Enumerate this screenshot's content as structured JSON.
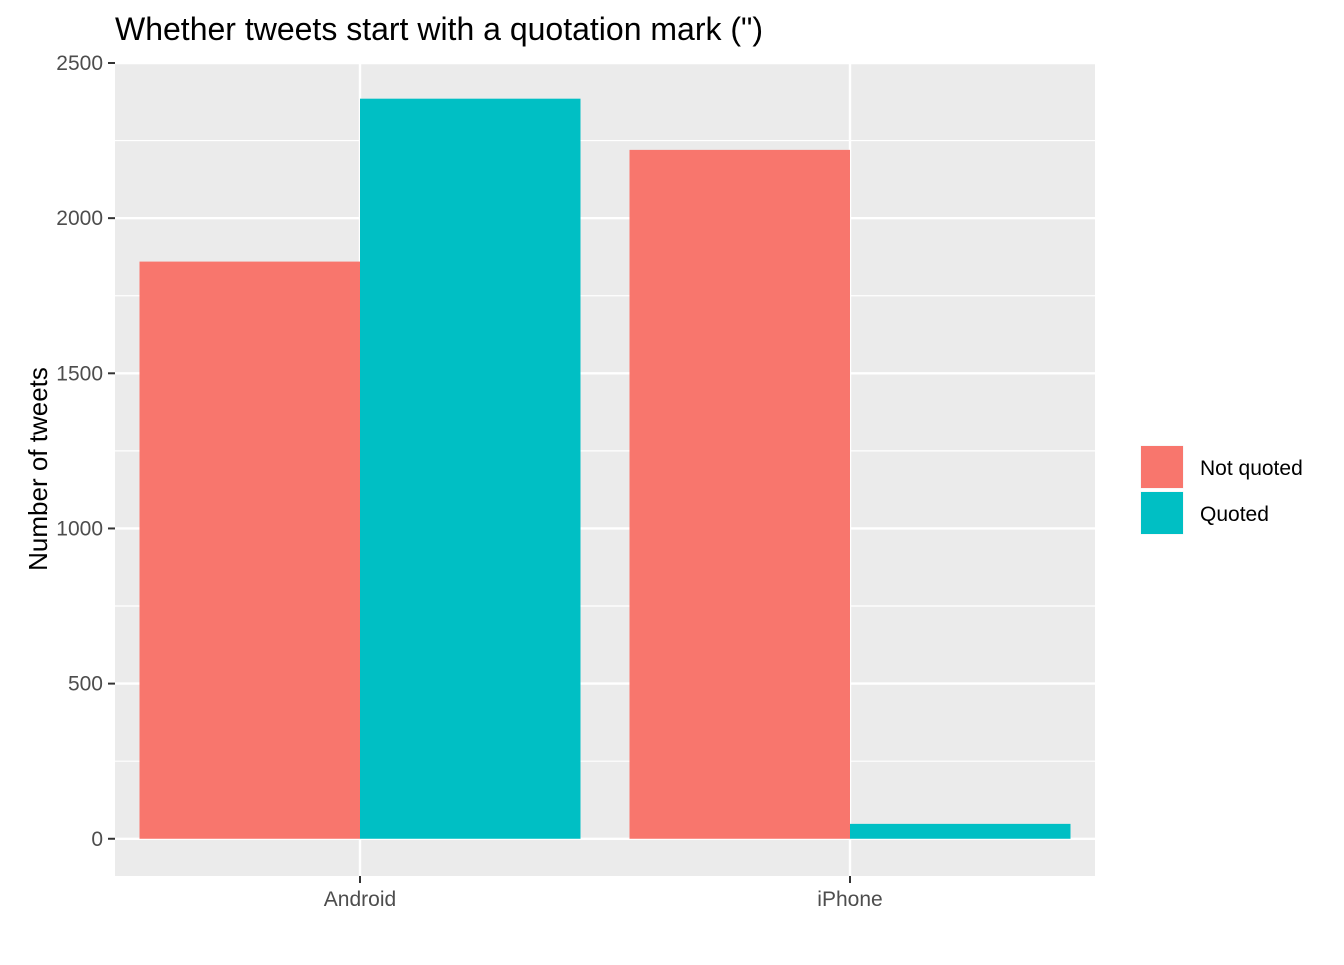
{
  "chart_data": {
    "type": "bar",
    "title": "Whether tweets start with a quotation mark (\")",
    "xlabel": "",
    "ylabel": "Number of tweets",
    "categories": [
      "Android",
      "iPhone"
    ],
    "series": [
      {
        "name": "Not quoted",
        "color": "#F8766D",
        "values": [
          1860,
          2220
        ]
      },
      {
        "name": "Quoted",
        "color": "#00BFC4",
        "values": [
          2385,
          48
        ]
      }
    ],
    "ylim": [
      -120,
      2500
    ],
    "yticks": [
      0,
      500,
      1000,
      1500,
      2000,
      2500
    ],
    "grid": true,
    "legend_position": "right",
    "panel_background": "#EBEBEB"
  }
}
